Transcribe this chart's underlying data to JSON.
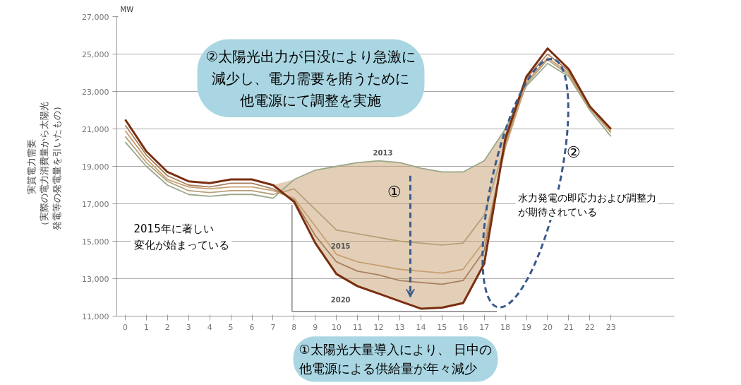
{
  "chart_data": {
    "type": "line",
    "ylabel": "実質電力需要（実際の電力消費量から太陽光発電等の発電量を引いたもの）",
    "x": [
      0,
      1,
      2,
      3,
      4,
      5,
      6,
      7,
      8,
      9,
      10,
      11,
      12,
      13,
      14,
      15,
      16,
      17,
      18,
      19,
      20,
      21,
      22,
      23
    ],
    "xlim": [
      -0.4,
      26
    ],
    "xticks": [
      0,
      1,
      2,
      3,
      4,
      5,
      6,
      7,
      8,
      9,
      10,
      11,
      12,
      13,
      14,
      15,
      16,
      17,
      18,
      19,
      20,
      21,
      22,
      23
    ],
    "ylim": [
      11000,
      27000
    ],
    "yticks": [
      {
        "value": 11000,
        "label": "11,000"
      },
      {
        "value": 13000,
        "label": "13,000"
      },
      {
        "value": 15000,
        "label": "15,000"
      },
      {
        "value": 17000,
        "label": "17,000"
      },
      {
        "value": 19000,
        "label": "19,000"
      },
      {
        "value": 21000,
        "label": "21,000"
      },
      {
        "value": 23000,
        "label": "23,000"
      },
      {
        "value": 25000,
        "label": "25,000"
      },
      {
        "value": 27000,
        "label": "27,000"
      }
    ],
    "grid": "y",
    "marker": "none",
    "line_style": "solid",
    "series": [
      {
        "name": "2013",
        "color": "#9aa88a",
        "values": [
          20300,
          19000,
          18000,
          17500,
          17400,
          17500,
          17500,
          17300,
          18300,
          18800,
          19000,
          19200,
          19300,
          19200,
          18900,
          18700,
          18700,
          19300,
          21000,
          23300,
          24500,
          23800,
          22000,
          20600
        ]
      },
      {
        "color": "#b8a078",
        "values": [
          20600,
          19200,
          18200,
          17700,
          17600,
          17700,
          17700,
          17500,
          17800,
          16700,
          15600,
          15400,
          15200,
          15000,
          14900,
          14800,
          14900,
          16400,
          20200,
          23400,
          24700,
          23900,
          22100,
          20800
        ]
      },
      {
        "name": "2015",
        "color": "#c8a070",
        "values": [
          20900,
          19400,
          18300,
          17900,
          17800,
          17900,
          17900,
          17700,
          17300,
          15800,
          14300,
          13900,
          13700,
          13500,
          13400,
          13300,
          13500,
          15000,
          20000,
          23500,
          24800,
          24000,
          22100,
          20900
        ],
        "lower": [
          21500,
          19800,
          18700,
          18200,
          18100,
          18300,
          18300,
          18000,
          17100,
          14900,
          13250,
          12600,
          12200,
          11800,
          11400,
          11450,
          11700,
          13800,
          20500,
          23800,
          25300,
          24200,
          22200,
          21000
        ],
        "upper": [
          21500,
          19800,
          18700,
          18200,
          18100,
          18300,
          18300,
          18000,
          18300,
          18800,
          19000,
          19200,
          19300,
          19200,
          18900,
          18700,
          18700,
          19300,
          21000,
          23800,
          25300,
          24200,
          22200,
          21000
        ]
      },
      {
        "color": "#a88060",
        "values": [
          21200,
          19600,
          18500,
          18000,
          17900,
          18100,
          18100,
          17800,
          17200,
          15300,
          13900,
          13400,
          13200,
          12900,
          12800,
          12700,
          12900,
          14500,
          20300,
          23700,
          25000,
          24100,
          22200,
          21000
        ]
      },
      {
        "name": "2020",
        "color": "#7a2e10",
        "values": [
          21500,
          19800,
          18700,
          18200,
          18100,
          18300,
          18300,
          18000,
          17100,
          14900,
          13250,
          12600,
          12200,
          11800,
          11400,
          11450,
          11700,
          13800,
          20500,
          23800,
          25300,
          24200,
          22200,
          21000
        ]
      }
    ],
    "annotations": [
      "MW",
      "②太陽光出力が日没により急激に減少し、電力需要を賄うために他電源にて調整を実施",
      "①太陽光大量導入により、 日中の他電源による供給量が年々減少",
      "2015年に著しい変化が始まっている",
      "水力発電の即応力および調整力が期待されている",
      "①",
      "②"
    ]
  }
}
